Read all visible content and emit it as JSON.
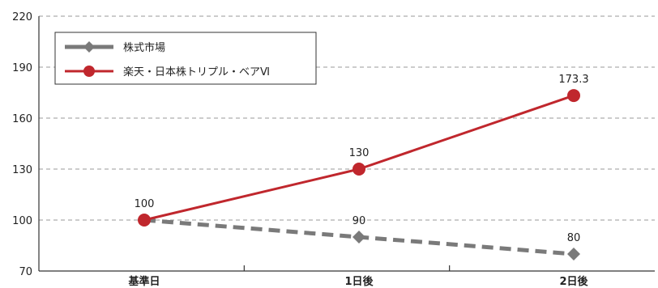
{
  "chart_data": {
    "type": "line",
    "categories": [
      "基準日",
      "1日後",
      "2日後"
    ],
    "ylim": [
      70,
      220
    ],
    "yticks": [
      70,
      100,
      130,
      160,
      190,
      220
    ],
    "grid": "horizontal dashed",
    "legend_position": "top-left",
    "series": [
      {
        "name": "株式市場",
        "values": [
          100,
          90,
          80
        ],
        "data_labels": [
          "",
          "90",
          "80"
        ],
        "color": "#7a7a7a",
        "line_style": "dashed",
        "marker": "diamond"
      },
      {
        "name": "楽天・日本株トリプル・ベアⅥ",
        "values": [
          100,
          130,
          173.3
        ],
        "data_labels": [
          "100",
          "130",
          "173.3"
        ],
        "color": "#c0272d",
        "line_style": "solid",
        "marker": "circle"
      }
    ]
  }
}
